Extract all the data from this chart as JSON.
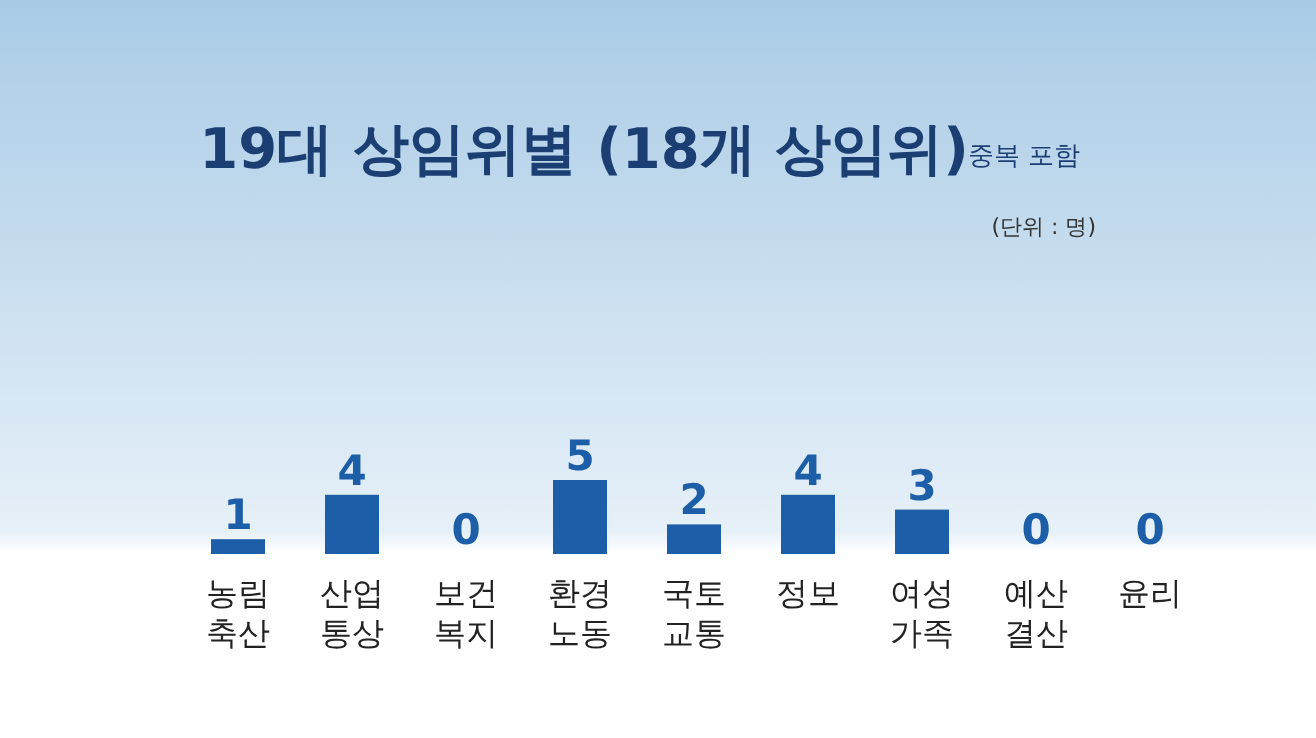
{
  "chart_data": {
    "type": "bar",
    "title": "19대 상임위별 (18개 상임위)",
    "subtitle": "중복 포함",
    "annotations": [
      "(단위 : 명)"
    ],
    "categories": [
      "농림\n축산",
      "산업\n통상",
      "보건\n복지",
      "환경\n노동",
      "국토\n교통",
      "정보",
      "여성\n가족",
      "예산\n결산",
      "윤리"
    ],
    "values": [
      1,
      4,
      0,
      5,
      2,
      4,
      3,
      0,
      0
    ],
    "color": "#1d5ea8",
    "data_labels": true
  }
}
